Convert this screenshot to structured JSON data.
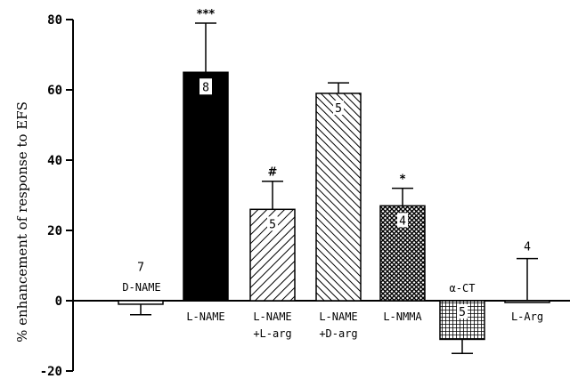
{
  "chart_data": {
    "type": "bar",
    "title": "",
    "xlabel": "",
    "ylabel": "% enhancement of response to EFS",
    "ylim": [
      -20,
      80
    ],
    "yticks": [
      -20,
      0,
      20,
      40,
      60,
      80
    ],
    "grid": false,
    "categories": [
      {
        "lines": [
          "D-NAME"
        ],
        "value": -1,
        "error": 3,
        "n": "7",
        "sig": "",
        "pattern": "white"
      },
      {
        "lines": [
          "L-NAME"
        ],
        "value": 65,
        "error": 14,
        "n": "8",
        "sig": "***",
        "pattern": "black"
      },
      {
        "lines": [
          "L-NAME",
          "+L-arg"
        ],
        "value": 26,
        "error": 8,
        "n": "5",
        "sig": "#",
        "pattern": "diag-right"
      },
      {
        "lines": [
          "L-NAME",
          "+D-arg"
        ],
        "value": 59,
        "error": 3,
        "n": "5",
        "sig": "",
        "pattern": "diag-left"
      },
      {
        "lines": [
          "L-NMMA"
        ],
        "value": 27,
        "error": 5,
        "n": "4",
        "sig": "*",
        "pattern": "crosshatch"
      },
      {
        "lines": [
          "α-CT"
        ],
        "value": -11,
        "error": 4,
        "n": "5",
        "sig": "",
        "pattern": "grid"
      },
      {
        "lines": [
          "L-Arg"
        ],
        "value": 0,
        "error": 12,
        "n": "4",
        "sig": "",
        "pattern": "white"
      }
    ]
  }
}
